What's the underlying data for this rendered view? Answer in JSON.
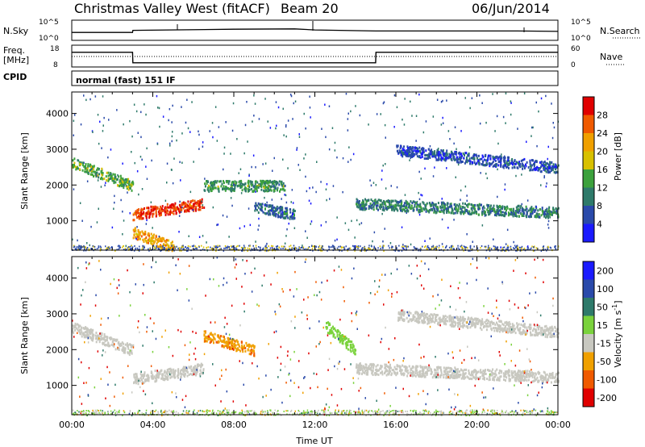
{
  "header": {
    "title": "Christmas Valley West (fitACF)",
    "beam": "Beam 20",
    "date": "06/Jun/2014"
  },
  "panels": {
    "noise": {
      "left_label": "N.Sky",
      "left_ticks": [
        "10^5",
        "10^0"
      ],
      "right_ticks": [
        "10^5",
        "10^0"
      ],
      "right_label": "N.Search"
    },
    "freq": {
      "left_label_1": "Freq.",
      "left_label_2": "[MHz]",
      "left_ticks": [
        "18",
        "8"
      ],
      "right_ticks": [
        "60",
        "0"
      ],
      "right_label": "Nave"
    },
    "cpid": {
      "label": "CPID",
      "text": "normal (fast) 151 IF"
    },
    "power": {
      "ylabel": "Slant Range [km]"
    },
    "velocity": {
      "ylabel": "Slant Range [km]"
    }
  },
  "chart_data": [
    {
      "type": "line",
      "name": "noise",
      "x": [
        "00:00",
        "03:00",
        "03:01",
        "08:00",
        "11:00",
        "12:00",
        "15:00",
        "22:00",
        "24:00"
      ],
      "series": [
        {
          "name": "N.Sky",
          "values": [
            2.0,
            2.0,
            2.6,
            2.9,
            3.0,
            2.7,
            2.4,
            2.4,
            2.3
          ]
        }
      ]
    },
    {
      "type": "line",
      "name": "frequency",
      "x": [
        "00:00",
        "03:00",
        "03:01",
        "15:00",
        "15:01",
        "24:00"
      ],
      "series": [
        {
          "name": "Freq.",
          "values": [
            14.6,
            14.6,
            9.6,
            9.6,
            14.6,
            14.6
          ]
        },
        {
          "name": "Nave",
          "values": [
            30,
            30,
            30,
            30,
            30,
            30
          ]
        }
      ],
      "ylim": [
        8,
        18
      ]
    },
    {
      "type": "heatmap",
      "name": "power",
      "xlabel": "Time UT",
      "ylabel": "Slant Range [km]",
      "xlim": [
        0,
        24
      ],
      "ylim": [
        180,
        4600
      ],
      "x_ticks": [
        "00:00",
        "04:00",
        "08:00",
        "12:00",
        "16:00",
        "20:00",
        "00:00"
      ],
      "y_ticks": [
        1000,
        2000,
        3000,
        4000
      ],
      "colorbar": {
        "label": "Power [dB]",
        "ticks": [
          4,
          8,
          12,
          16,
          20,
          24,
          28
        ],
        "colors": [
          "#1a1aff",
          "#2a4aaa",
          "#2e7a6a",
          "#3ca13c",
          "#d8c000",
          "#f0a000",
          "#f05a00",
          "#e00000"
        ]
      },
      "features": [
        {
          "from_h": 0.0,
          "to_h": 3.0,
          "range_start_km": 2650,
          "range_end_km": 2000,
          "power_db": 14
        },
        {
          "from_h": 3.0,
          "to_h": 6.5,
          "range_start_km": 1200,
          "range_end_km": 1500,
          "power_db": 28
        },
        {
          "from_h": 3.0,
          "to_h": 5.0,
          "range_start_km": 700,
          "range_end_km": 300,
          "power_db": 22
        },
        {
          "from_h": 6.5,
          "to_h": 10.5,
          "range_start_km": 2000,
          "range_end_km": 2000,
          "power_db": 12
        },
        {
          "from_h": 9.0,
          "to_h": 11.0,
          "range_start_km": 1400,
          "range_end_km": 1200,
          "power_db": 8
        },
        {
          "from_h": 14.0,
          "to_h": 24.0,
          "range_start_km": 1500,
          "range_end_km": 1250,
          "power_db": 10
        },
        {
          "from_h": 16.0,
          "to_h": 24.0,
          "range_start_km": 3000,
          "range_end_km": 2500,
          "power_db": 6
        }
      ]
    },
    {
      "type": "heatmap",
      "name": "velocity",
      "xlabel": "Time UT",
      "ylabel": "Slant Range [km]",
      "xlim": [
        0,
        24
      ],
      "ylim": [
        180,
        4600
      ],
      "x_ticks": [
        "00:00",
        "04:00",
        "08:00",
        "12:00",
        "16:00",
        "20:00",
        "00:00"
      ],
      "y_ticks": [
        1000,
        2000,
        3000,
        4000
      ],
      "colorbar": {
        "label": "Velocity [m s^-1]",
        "ticks": [
          200,
          100,
          50,
          15,
          -15,
          -50,
          -100,
          -200
        ],
        "colors": [
          "#1a1aff",
          "#2a4aaa",
          "#2e7a6a",
          "#7ad23c",
          "#c8c8c0",
          "#f0a000",
          "#f05a00",
          "#e00000"
        ]
      },
      "features": [
        {
          "from_h": 0.0,
          "to_h": 3.0,
          "range_start_km": 2650,
          "range_end_km": 2000,
          "velocity_ms": 0
        },
        {
          "from_h": 3.0,
          "to_h": 6.5,
          "range_start_km": 1200,
          "range_end_km": 1500,
          "velocity_ms": 0
        },
        {
          "from_h": 6.5,
          "to_h": 9.0,
          "range_start_km": 2400,
          "range_end_km": 2000,
          "velocity_ms": -40
        },
        {
          "from_h": 12.5,
          "to_h": 14.0,
          "range_start_km": 2700,
          "range_end_km": 2000,
          "velocity_ms": 30
        },
        {
          "from_h": 14.0,
          "to_h": 24.0,
          "range_start_km": 1500,
          "range_end_km": 1250,
          "velocity_ms": 0
        },
        {
          "from_h": 16.0,
          "to_h": 24.0,
          "range_start_km": 3000,
          "range_end_km": 2500,
          "velocity_ms": 0
        }
      ]
    }
  ]
}
